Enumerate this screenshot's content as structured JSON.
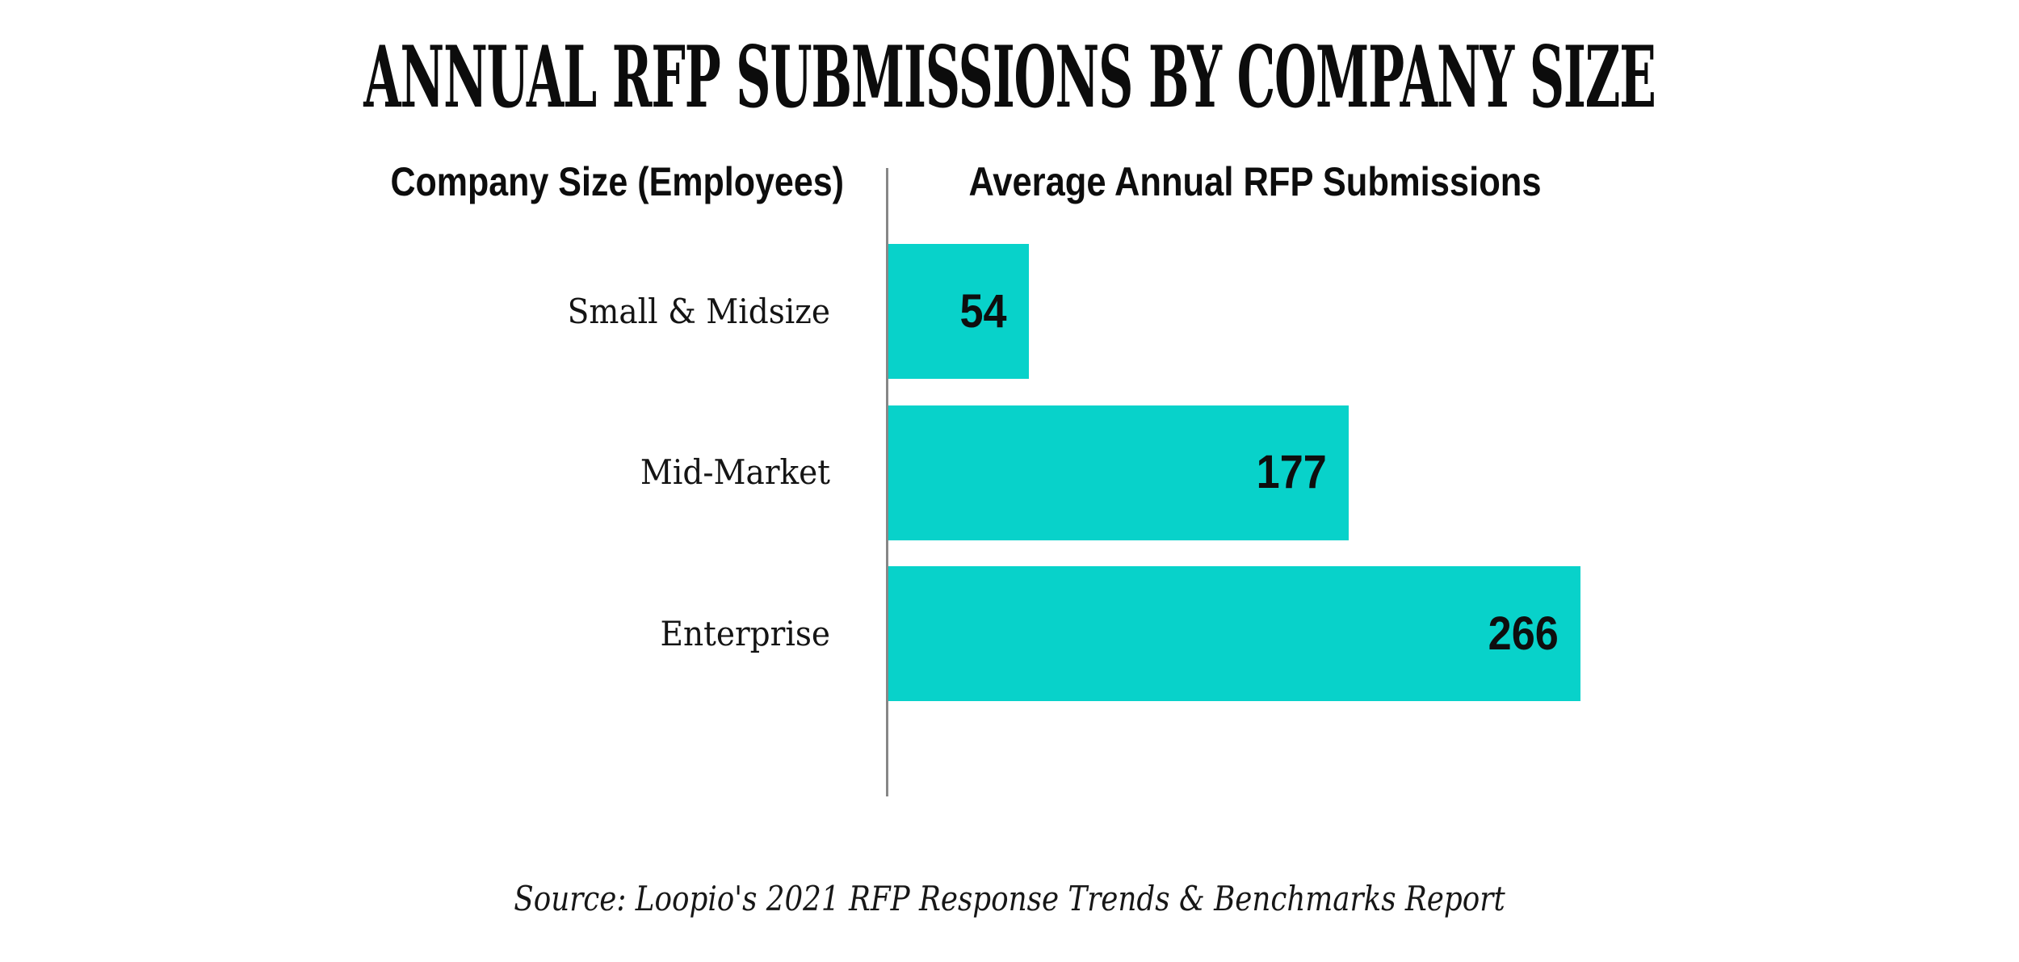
{
  "page": {
    "background": "#ffffff"
  },
  "title": "ANNUAL RFP SUBMISSIONS BY COMPANY SIZE",
  "table": {
    "left_header": "Company Size (Employees)",
    "right_header": "Average Annual RFP Submissions"
  },
  "source": "Source: Loopio's 2021 RFP Response Trends & Benchmarks Report",
  "colors": {
    "bar": "#08d2ca",
    "divider": "#878787",
    "text": "#0d0d0d"
  },
  "chart_data": {
    "type": "bar",
    "orientation": "horizontal",
    "title": "ANNUAL RFP SUBMISSIONS BY COMPANY SIZE",
    "xlabel": "Average Annual RFP Submissions",
    "ylabel": "Company Size (Employees)",
    "categories": [
      "Small & Midsize",
      "Mid-Market",
      "Enterprise"
    ],
    "values": [
      54,
      177,
      266
    ],
    "xlim": [
      0,
      266
    ],
    "data_labels": true,
    "legend": false,
    "grid": false,
    "annotations": [
      "Source: Loopio's 2021 RFP Response Trends & Benchmarks Report"
    ]
  }
}
